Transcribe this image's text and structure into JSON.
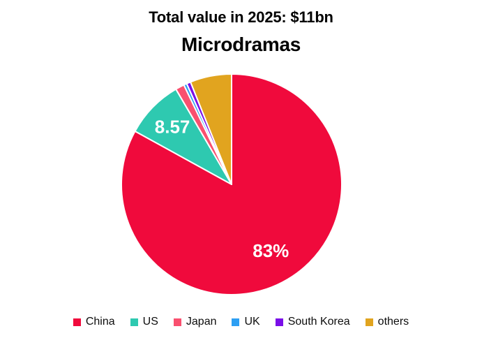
{
  "chart_data": {
    "type": "pie",
    "title": "Total value in 2025: $11bn",
    "subtitle": "Microdramas",
    "legend_position": "bottom",
    "direction": "clockwise",
    "start_angle_deg": 0,
    "data_label_color": "#ffffff",
    "slices": [
      {
        "label": "China",
        "value": 83,
        "display_label": "83%",
        "color": "#F00A3C"
      },
      {
        "label": "US",
        "value": 8.57,
        "display_label": "8.57",
        "color": "#2EC9B0"
      },
      {
        "label": "Japan",
        "value": 1.3,
        "display_label": "",
        "color": "#F9506F"
      },
      {
        "label": "UK",
        "value": 0.45,
        "display_label": "",
        "color": "#2D9FF3"
      },
      {
        "label": "South Korea",
        "value": 0.6,
        "display_label": "",
        "color": "#7A0FE8"
      },
      {
        "label": "others",
        "value": 6.08,
        "display_label": "",
        "color": "#E1A41F"
      }
    ]
  }
}
